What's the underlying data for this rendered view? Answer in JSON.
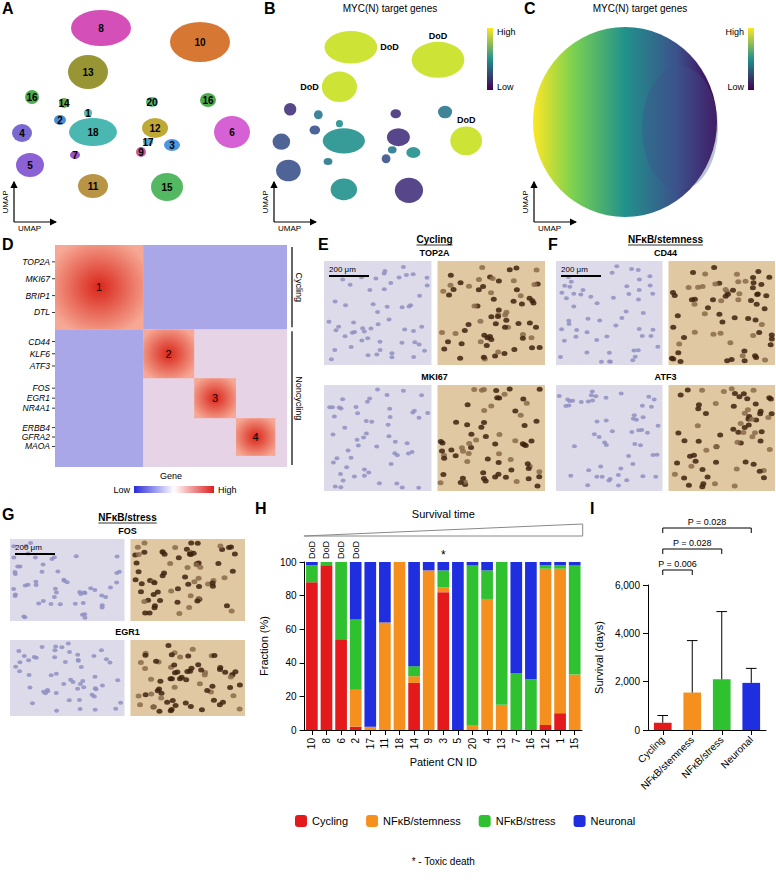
{
  "chart_data": [
    {
      "type": "bar",
      "title": "Survival time",
      "x_label": "Patient CN ID",
      "y_label": "Fraction (%)",
      "categories": [
        "10",
        "8",
        "6",
        "2",
        "17",
        "11",
        "18",
        "14",
        "9",
        "3",
        "5",
        "20",
        "4",
        "13",
        "7",
        "16",
        "12",
        "1",
        "15"
      ],
      "series": [
        {
          "name": "Cycling",
          "color": "#e3191c",
          "values": [
            88,
            98,
            54,
            2,
            0,
            0,
            0,
            28,
            0,
            82,
            0,
            0,
            0,
            0,
            0,
            0,
            3,
            10,
            0
          ]
        },
        {
          "name": "NFκB/stemness",
          "color": "#f5901e",
          "values": [
            0,
            0,
            0,
            22,
            2,
            64,
            100,
            4,
            95,
            3,
            0,
            3,
            78,
            15,
            0,
            0,
            93,
            86,
            33
          ]
        },
        {
          "name": "NFκB/stress",
          "color": "#2fc12f",
          "values": [
            10,
            2,
            46,
            42,
            0,
            0,
            0,
            6,
            0,
            10,
            0,
            95,
            17,
            85,
            34,
            30,
            2,
            2,
            65
          ]
        },
        {
          "name": "Neuronal",
          "color": "#1f2fe0",
          "values": [
            2,
            0,
            0,
            34,
            98,
            36,
            0,
            62,
            5,
            5,
            100,
            2,
            5,
            0,
            66,
            70,
            2,
            2,
            2
          ]
        }
      ],
      "stacked": true,
      "ylim": [
        0,
        100
      ],
      "yticks": [
        0,
        20,
        40,
        60,
        80,
        100
      ],
      "grid": false,
      "legend": "bottom",
      "annotations": [
        {
          "category": "10",
          "text": "DoD"
        },
        {
          "category": "8",
          "text": "DoD"
        },
        {
          "category": "6",
          "text": "DoD"
        },
        {
          "category": "2",
          "text": "DoD"
        },
        {
          "category": "3",
          "text": "*"
        }
      ],
      "note": "* - Toxic death"
    },
    {
      "type": "bar",
      "y_label": "Survival (days)",
      "categories": [
        "Cycling",
        "NFκB/stemness",
        "NFκB/stress",
        "Neuronal"
      ],
      "values": [
        300,
        1550,
        2100,
        1950
      ],
      "errors": [
        300,
        2150,
        2800,
        600
      ],
      "colors": [
        "#e3191c",
        "#f5901e",
        "#2fc12f",
        "#1f2fe0"
      ],
      "ylim": [
        0,
        6000
      ],
      "yticks": [
        0,
        {
          "value": 2000,
          "label": "2,000"
        },
        {
          "value": 4000,
          "label": "4,000"
        },
        {
          "value": 6000,
          "label": "6,000"
        }
      ],
      "grid": false,
      "comparisons": [
        {
          "from": "Cycling",
          "to": "NFκB/stemness",
          "text": "P = 0.006"
        },
        {
          "from": "Cycling",
          "to": "NFκB/stress",
          "text": "P = 0.028"
        },
        {
          "from": "Cycling",
          "to": "Neuronal",
          "text": "P = 0.028"
        }
      ]
    }
  ],
  "figure": {
    "A": {
      "letter": "A",
      "clusters": [
        "8",
        "13",
        "10",
        "16",
        "14",
        "2",
        "1",
        "20",
        "16",
        "4",
        "18",
        "12",
        "17",
        "9",
        "3",
        "6",
        "7",
        "5",
        "11",
        "15"
      ],
      "axis_label": "UMAP"
    },
    "B": {
      "letter": "B",
      "title": "MYC(N) target genes",
      "marked": [
        {
          "cluster": "13",
          "text": "DoD"
        },
        {
          "cluster": "8",
          "text": "DoD"
        },
        {
          "cluster": "10",
          "text": "DoD"
        },
        {
          "cluster": "6",
          "text": "DoD"
        }
      ],
      "colorbar": {
        "high": "High",
        "low": "Low"
      },
      "axis_label": "UMAP"
    },
    "C": {
      "letter": "C",
      "title": "MYC(N) target genes",
      "colorbar": {
        "high": "High",
        "low": "Low"
      },
      "axis_label": "UMAP"
    },
    "D": {
      "letter": "D",
      "modules": [
        {
          "label": "1",
          "genes": [
            "TOP2A",
            "MKI67",
            "BRIP1",
            "DTL"
          ]
        },
        {
          "label": "2",
          "genes": [
            "CD44",
            "KLF6",
            "ATF3"
          ]
        },
        {
          "label": "3",
          "genes": [
            "FOS",
            "EGR1",
            "NR4A1"
          ]
        },
        {
          "label": "4",
          "genes": [
            "ERBB4",
            "GFRA2",
            "MAOA"
          ]
        }
      ],
      "groups": [
        {
          "label": "Cycling",
          "modules": [
            "1"
          ]
        },
        {
          "label": "Noncycling",
          "modules": [
            "2",
            "3",
            "4"
          ]
        }
      ],
      "x_label": "Gene",
      "colorbar": {
        "low": "Low",
        "high": "High"
      }
    },
    "E": {
      "letter": "E",
      "title": "Cycling",
      "stains": [
        "TOP2A",
        "MKI67"
      ],
      "scale_bar": "200 μm"
    },
    "F": {
      "letter": "F",
      "title": "NFκB/stemness",
      "stains": [
        "CD44",
        "ATF3"
      ],
      "scale_bar": "200 μm"
    },
    "G": {
      "letter": "G",
      "title": "NFκB/stress",
      "stains": [
        "FOS",
        "EGR1"
      ],
      "scale_bar": "200 μm"
    },
    "H": {
      "letter": "H"
    },
    "I": {
      "letter": "I"
    }
  }
}
